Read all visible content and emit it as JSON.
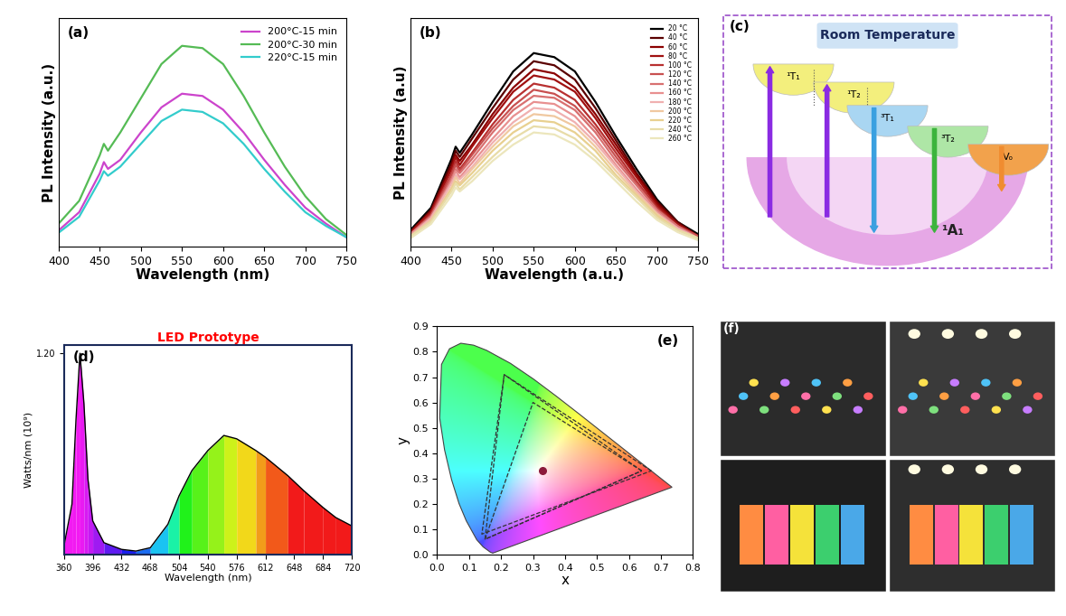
{
  "chart_data": [
    {
      "type": "line",
      "panel_label": "(a)",
      "x": [
        400,
        425,
        450,
        455,
        460,
        475,
        500,
        525,
        550,
        575,
        600,
        625,
        650,
        675,
        700,
        725,
        750
      ],
      "series": [
        {
          "name": "200°C-15 min",
          "color": "#cc44cc",
          "values": [
            7,
            15,
            32,
            37,
            34,
            38,
            50,
            61,
            67,
            66,
            60,
            50,
            38,
            27,
            17,
            10,
            4
          ]
        },
        {
          "name": "200°C-30 min",
          "color": "#55bb55",
          "values": [
            10,
            20,
            40,
            45,
            42,
            50,
            65,
            80,
            88,
            87,
            80,
            66,
            50,
            35,
            22,
            12,
            5
          ]
        },
        {
          "name": "220°C-15 min",
          "color": "#33cccc",
          "values": [
            6,
            13,
            29,
            33,
            31,
            35,
            45,
            55,
            60,
            59,
            54,
            45,
            34,
            24,
            15,
            9,
            4
          ]
        }
      ],
      "xlabel": "Wavelength (nm)",
      "ylabel": "PL Intensity (a.u.)",
      "xlim": [
        400,
        750
      ],
      "xticks": [
        400,
        450,
        500,
        550,
        600,
        650,
        700,
        750
      ],
      "ylim": [
        0,
        100
      ],
      "tick_labels": "x",
      "legend": "upper right"
    },
    {
      "type": "line",
      "panel_label": "(b)",
      "x": [
        400,
        425,
        450,
        455,
        460,
        475,
        500,
        525,
        550,
        575,
        600,
        625,
        650,
        675,
        700,
        725,
        750
      ],
      "series": [
        {
          "name": "20 °C",
          "color": "#000000",
          "values": [
            8,
            19,
            43,
            49,
            46,
            55,
            71,
            86,
            95,
            93,
            86,
            71,
            54,
            38,
            23,
            12,
            6
          ]
        },
        {
          "name": "40 °C",
          "color": "#5a0000",
          "values": [
            7,
            18,
            41,
            47,
            44,
            53,
            68,
            82,
            91,
            89,
            82,
            68,
            52,
            36,
            22,
            12,
            5
          ]
        },
        {
          "name": "60 °C",
          "color": "#8b0000",
          "values": [
            7,
            17,
            39,
            45,
            42,
            50,
            65,
            78,
            87,
            85,
            78,
            65,
            50,
            35,
            21,
            11,
            5
          ]
        },
        {
          "name": "80 °C",
          "color": "#a01010",
          "values": [
            7,
            17,
            38,
            44,
            40,
            49,
            63,
            76,
            84,
            82,
            76,
            63,
            48,
            34,
            20,
            11,
            5
          ]
        },
        {
          "name": "100 °C",
          "color": "#b83030",
          "values": [
            6,
            16,
            36,
            42,
            38,
            46,
            60,
            72,
            80,
            78,
            72,
            60,
            46,
            32,
            19,
            10,
            5
          ]
        },
        {
          "name": "120 °C",
          "color": "#c85050",
          "values": [
            6,
            15,
            35,
            40,
            37,
            45,
            58,
            69,
            77,
            75,
            69,
            58,
            44,
            31,
            18,
            10,
            5
          ]
        },
        {
          "name": "140 °C",
          "color": "#d87070",
          "values": [
            6,
            15,
            33,
            38,
            36,
            43,
            56,
            67,
            74,
            73,
            67,
            56,
            42,
            30,
            18,
            10,
            4
          ]
        },
        {
          "name": "160 °C",
          "color": "#e89090",
          "values": [
            6,
            14,
            32,
            37,
            34,
            41,
            53,
            64,
            71,
            70,
            64,
            53,
            40,
            28,
            17,
            9,
            4
          ]
        },
        {
          "name": "180 °C",
          "color": "#f0b0b0",
          "values": [
            5,
            14,
            31,
            35,
            33,
            39,
            51,
            61,
            68,
            67,
            61,
            51,
            39,
            27,
            16,
            9,
            4
          ]
        },
        {
          "name": "200 °C",
          "color": "#f0c8a0",
          "values": [
            5,
            13,
            29,
            34,
            31,
            38,
            49,
            59,
            65,
            64,
            59,
            49,
            37,
            26,
            16,
            8,
            4
          ]
        },
        {
          "name": "220 °C",
          "color": "#e8d090",
          "values": [
            5,
            12,
            28,
            32,
            30,
            36,
            47,
            56,
            62,
            61,
            56,
            47,
            35,
            25,
            15,
            8,
            4
          ]
        },
        {
          "name": "240 °C",
          "color": "#e8dca8",
          "values": [
            5,
            12,
            27,
            31,
            28,
            34,
            44,
            53,
            59,
            58,
            53,
            44,
            34,
            24,
            14,
            8,
            4
          ]
        },
        {
          "name": "260 °C",
          "color": "#ece6bc",
          "values": [
            4,
            11,
            25,
            29,
            27,
            32,
            42,
            50,
            56,
            55,
            50,
            42,
            32,
            22,
            13,
            7,
            3
          ]
        }
      ],
      "xlabel": "Wavelength (a.u.)",
      "ylabel": "PL Intensity (a.u)",
      "xlim": [
        400,
        750
      ],
      "xticks": [
        400,
        450,
        500,
        550,
        600,
        650,
        700,
        750
      ],
      "ylim": [
        0,
        112
      ],
      "tick_labels": "x",
      "legend": "upper right"
    },
    {
      "type": "area",
      "panel_label": "(d)",
      "title": "LED Prototype",
      "x": [
        360,
        370,
        375,
        380,
        385,
        390,
        396,
        410,
        432,
        450,
        468,
        490,
        504,
        520,
        540,
        560,
        576,
        600,
        612,
        640,
        660,
        684,
        700,
        720
      ],
      "series": [
        {
          "name": "LED Prototype",
          "color": "#000000",
          "values": [
            0.05,
            0.3,
            0.8,
            1.2,
            0.9,
            0.45,
            0.2,
            0.07,
            0.03,
            0.02,
            0.04,
            0.18,
            0.35,
            0.5,
            0.62,
            0.71,
            0.69,
            0.62,
            0.58,
            0.47,
            0.38,
            0.28,
            0.22,
            0.17
          ]
        }
      ],
      "xlabel": "Wavelength (nm)",
      "ylabel": "Watts/nm (10⁹)",
      "xlim": [
        360,
        720
      ],
      "xticks": [
        360,
        396,
        432,
        468,
        504,
        540,
        576,
        612,
        648,
        684,
        720
      ],
      "ylim": [
        0,
        1.25
      ],
      "yticks": [
        {
          "value": 1.2,
          "label": "1.20"
        }
      ]
    },
    {
      "type": "scatter",
      "panel_label": "(e)",
      "point": {
        "x": 0.33,
        "y": 0.33,
        "color": "#8b1a3a"
      },
      "locus": {
        "x": [
          0.1741,
          0.1666,
          0.144,
          0.1241,
          0.0913,
          0.0687,
          0.0454,
          0.0235,
          0.0082,
          0.0139,
          0.0389,
          0.0743,
          0.1142,
          0.1547,
          0.2296,
          0.3016,
          0.3731,
          0.4441,
          0.5125,
          0.5752,
          0.627,
          0.6658,
          0.6915,
          0.7347
        ],
        "y": [
          0.005,
          0.0089,
          0.0297,
          0.0578,
          0.1327,
          0.2007,
          0.295,
          0.4127,
          0.5384,
          0.7502,
          0.812,
          0.8338,
          0.8262,
          0.8059,
          0.7543,
          0.6923,
          0.6245,
          0.5547,
          0.4866,
          0.4242,
          0.3725,
          0.334,
          0.3083,
          0.2653
        ]
      },
      "gamuts": [
        {
          "x": [
            0.64,
            0.3,
            0.15
          ],
          "y": [
            0.33,
            0.6,
            0.06
          ]
        },
        {
          "x": [
            0.67,
            0.21,
            0.14
          ],
          "y": [
            0.33,
            0.71,
            0.08
          ]
        },
        {
          "x": [
            0.64,
            0.21,
            0.15
          ],
          "y": [
            0.33,
            0.71,
            0.06
          ]
        }
      ],
      "xlabel": "x",
      "ylabel": "y",
      "xlim": [
        0.0,
        0.8
      ],
      "xticks": [
        0.0,
        0.1,
        0.2,
        0.3,
        0.4,
        0.5,
        0.6,
        0.7,
        0.8
      ],
      "ylim": [
        0.0,
        0.9
      ],
      "yticks": [
        0.0,
        0.1,
        0.2,
        0.3,
        0.4,
        0.5,
        0.6,
        0.7,
        0.8,
        0.9
      ]
    }
  ],
  "diagram": {
    "panel_label": "(c)",
    "title": "Room Temperature",
    "levels": [
      "¹T₁",
      "¹T₂",
      "³T₁",
      "³T₂",
      "Vₒ"
    ],
    "ground": "¹A₁"
  },
  "photos": {
    "panel_label": "(f)"
  }
}
